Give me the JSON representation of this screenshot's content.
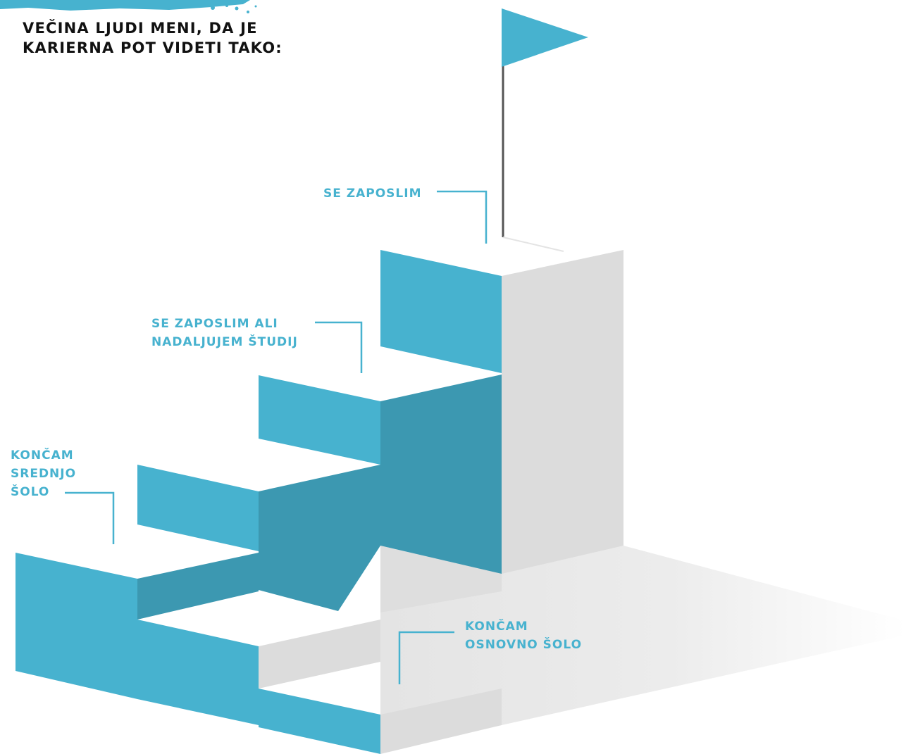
{
  "heading": {
    "line1": "Večina ljudi meni, da je",
    "line2": "karierna pot videti tako:"
  },
  "steps": [
    {
      "id": "osnovna",
      "lines": [
        "Končam",
        "osnovno šolo"
      ]
    },
    {
      "id": "srednja",
      "lines": [
        "Končam",
        "srednjo",
        "šolo"
      ]
    },
    {
      "id": "studij",
      "lines": [
        "Se zaposlim ali",
        "nadaljujem študij"
      ]
    },
    {
      "id": "zaposlitev",
      "lines": [
        "Se zaposlim"
      ]
    }
  ],
  "colors": {
    "accent": "#47b2cf",
    "accent_dark": "#3c98b1",
    "side_grey": "#dcdcdc",
    "floor_grey": "#e6e6e6",
    "pole": "#555555",
    "heading_text": "#111111"
  },
  "icons": {
    "goal": "flag-icon",
    "decoration": "paint-splash"
  }
}
